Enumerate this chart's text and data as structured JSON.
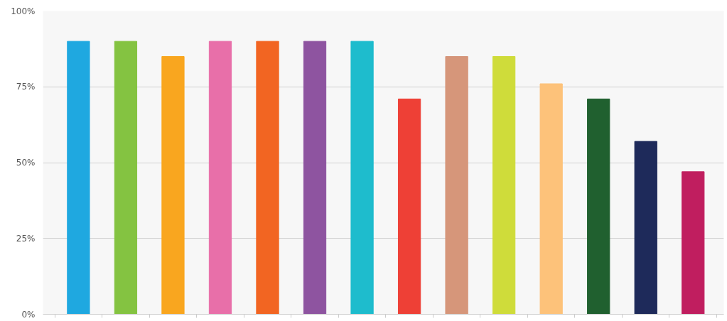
{
  "chart_data": {
    "type": "bar",
    "categories": [
      null,
      null,
      null,
      null,
      null,
      null,
      null,
      null,
      null,
      null,
      null,
      null,
      null,
      null
    ],
    "values": [
      90,
      90,
      85,
      90,
      90,
      90,
      90,
      71,
      85,
      85,
      76,
      71,
      57,
      47
    ],
    "colors": [
      "#1fa8e0",
      "#84c341",
      "#f9a61f",
      "#e86fa9",
      "#f26522",
      "#8e54a0",
      "#1ebccd",
      "#ee4036",
      "#d6967a",
      "#cfdc3a",
      "#fdc27a",
      "#20602f",
      "#1e2a5a",
      "#c01e5f"
    ],
    "ylim": [
      0,
      100
    ],
    "yticks": [
      {
        "value": 0,
        "label": "0%"
      },
      {
        "value": 25,
        "label": "25%"
      },
      {
        "value": 50,
        "label": "50%"
      },
      {
        "value": 75,
        "label": "75%"
      },
      {
        "value": 100,
        "label": "100%"
      }
    ],
    "grid": "y",
    "tick_labels": "y"
  }
}
